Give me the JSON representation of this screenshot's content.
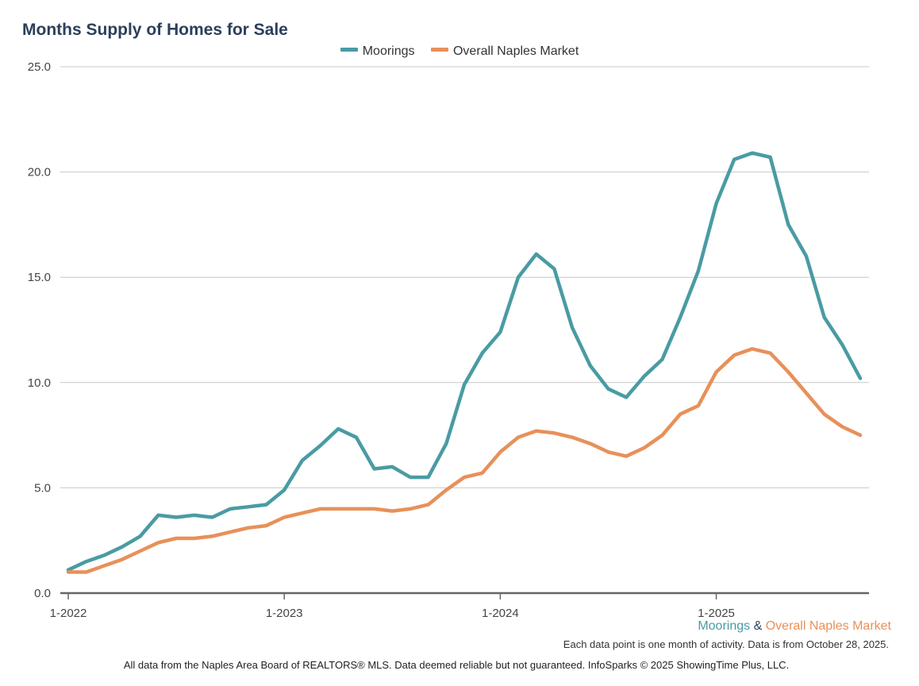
{
  "chart_data": {
    "type": "line",
    "title": "Months Supply of Homes for Sale",
    "ylim": [
      0,
      25
    ],
    "yticks": [
      "0.0",
      "5.0",
      "10.0",
      "15.0",
      "20.0",
      "25.0"
    ],
    "xticks": [
      "1-2022",
      "1-2023",
      "1-2024",
      "1-2025"
    ],
    "xtick_index": [
      0,
      12,
      24,
      36
    ],
    "grid": true,
    "legend_position": "top-center",
    "x": [
      "1-2022",
      "2-2022",
      "3-2022",
      "4-2022",
      "5-2022",
      "6-2022",
      "7-2022",
      "8-2022",
      "9-2022",
      "10-2022",
      "11-2022",
      "12-2022",
      "1-2023",
      "2-2023",
      "3-2023",
      "4-2023",
      "5-2023",
      "6-2023",
      "7-2023",
      "8-2023",
      "9-2023",
      "10-2023",
      "11-2023",
      "12-2023",
      "1-2024",
      "2-2024",
      "3-2024",
      "4-2024",
      "5-2024",
      "6-2024",
      "7-2024",
      "8-2024",
      "9-2024",
      "10-2024",
      "11-2024",
      "12-2024",
      "1-2025",
      "2-2025",
      "3-2025",
      "4-2025",
      "5-2025",
      "6-2025",
      "7-2025",
      "8-2025",
      "9-2025"
    ],
    "series": [
      {
        "name": "Moorings",
        "color": "#4a9ba3",
        "values": [
          1.1,
          1.5,
          1.8,
          2.2,
          2.7,
          3.7,
          3.6,
          3.7,
          3.6,
          4.0,
          4.1,
          4.2,
          4.9,
          6.3,
          7.0,
          7.8,
          7.4,
          5.9,
          6.0,
          5.5,
          5.5,
          7.1,
          9.9,
          11.4,
          12.4,
          15.0,
          16.1,
          15.4,
          12.6,
          10.8,
          9.7,
          9.3,
          10.3,
          11.1,
          13.1,
          15.3,
          18.5,
          20.6,
          20.9,
          20.7,
          17.5,
          16.0,
          13.1,
          11.8,
          10.2
        ]
      },
      {
        "name": "Overall Naples Market",
        "color": "#e8905a",
        "values": [
          1.0,
          1.0,
          1.3,
          1.6,
          2.0,
          2.4,
          2.6,
          2.6,
          2.7,
          2.9,
          3.1,
          3.2,
          3.6,
          3.8,
          4.0,
          4.0,
          4.0,
          4.0,
          3.9,
          4.0,
          4.2,
          4.9,
          5.5,
          5.7,
          6.7,
          7.4,
          7.7,
          7.6,
          7.4,
          7.1,
          6.7,
          6.5,
          6.9,
          7.5,
          8.5,
          8.9,
          10.5,
          11.3,
          11.6,
          11.4,
          10.5,
          9.5,
          8.5,
          7.9,
          7.5
        ]
      }
    ]
  },
  "caption": {
    "series1": "Moorings",
    "amp": "&",
    "series2": "Overall Naples Market"
  },
  "note": "Each data point is one month of activity. Data is from October 28, 2025.",
  "footer": "All data from the Naples Area Board of REALTORS® MLS. Data deemed reliable but not guaranteed. InfoSparks © 2025 ShowingTime Plus, LLC.",
  "colors": {
    "title": "#2b3f5c",
    "grid": "#c8c8c8",
    "axis": "#666666",
    "amp": "#2b3f5c"
  }
}
